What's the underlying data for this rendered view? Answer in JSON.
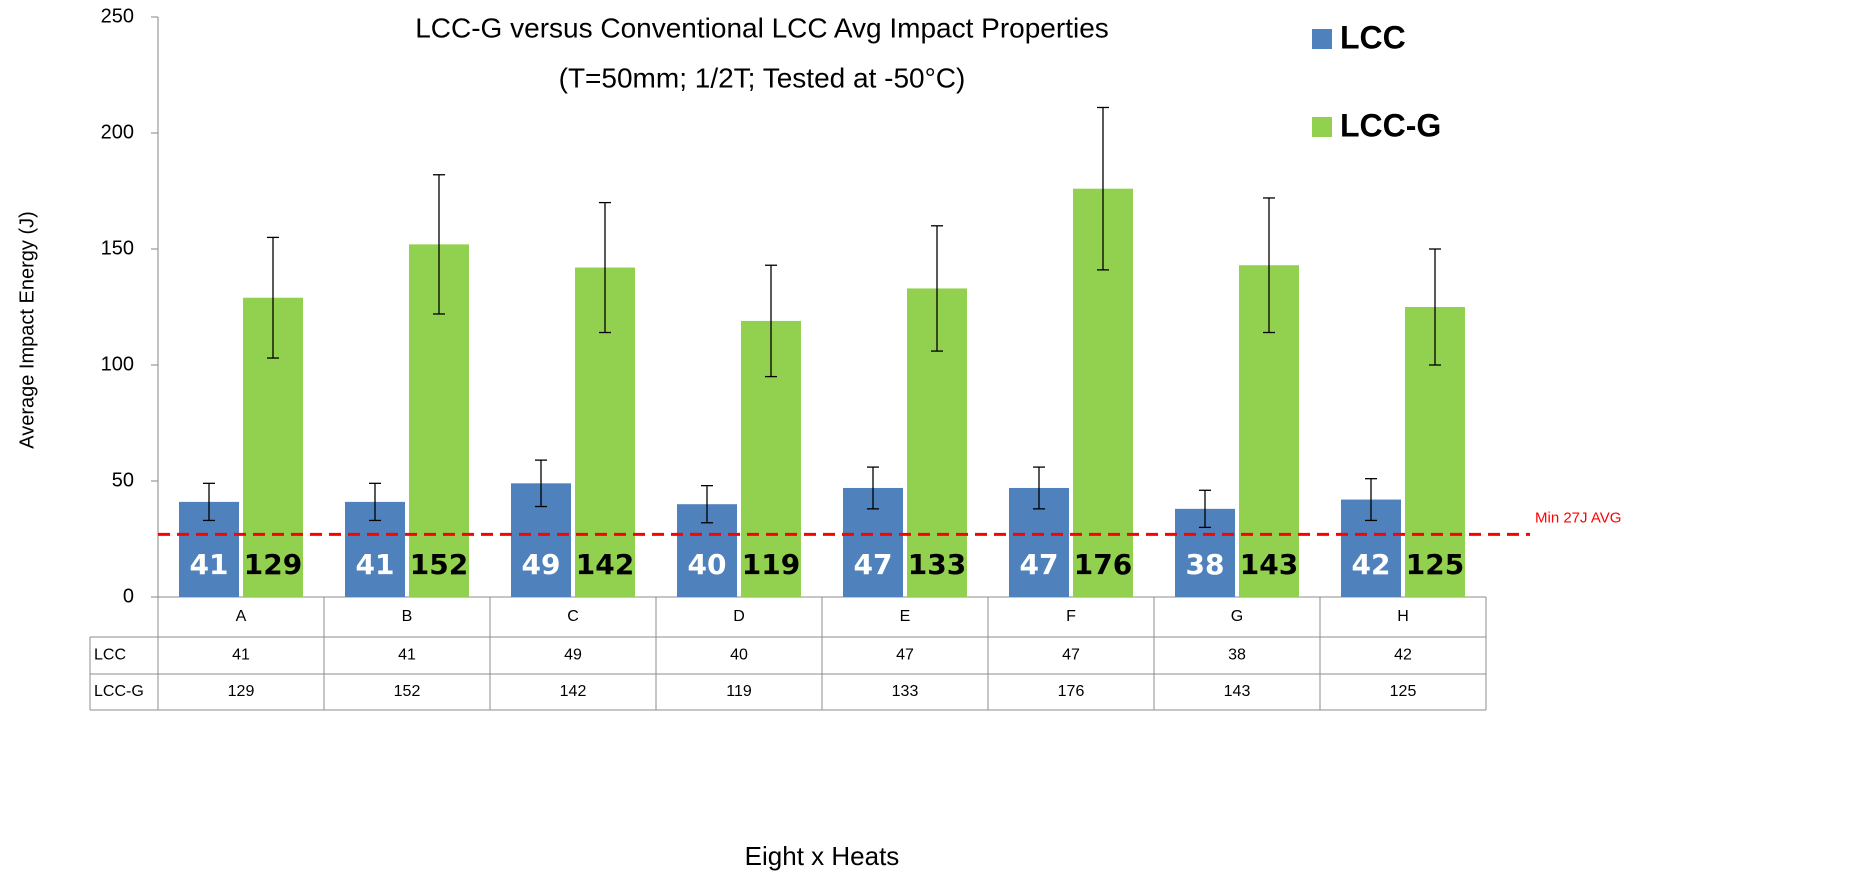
{
  "chart_data": {
    "type": "bar",
    "title": "LCC-G versus Conventional LCC Avg Impact Properties",
    "subtitle": "(T=50mm; 1/2T; Tested at -50°C)",
    "x_label": "Eight x Heats",
    "y_label": "Average Impact Energy (J)",
    "categories": [
      "A",
      "B",
      "C",
      "D",
      "E",
      "F",
      "G",
      "H"
    ],
    "series": [
      {
        "name": "LCC",
        "color": "#4f81bd",
        "values": [
          41,
          41,
          49,
          40,
          47,
          47,
          38,
          42
        ],
        "errors": [
          8,
          8,
          10,
          8,
          9,
          9,
          8,
          9
        ]
      },
      {
        "name": "LCC-G",
        "color": "#92d050",
        "values": [
          129,
          152,
          142,
          119,
          133,
          176,
          143,
          125
        ],
        "errors": [
          26,
          30,
          28,
          24,
          27,
          35,
          29,
          25
        ]
      }
    ],
    "ylim": [
      0,
      250
    ],
    "yticks": [
      0,
      50,
      100,
      150,
      200,
      250
    ],
    "grid": false,
    "legend": "top-right",
    "reference_line": {
      "value": 27,
      "label": "Min 27J AVG",
      "color": "#ff0000"
    }
  }
}
